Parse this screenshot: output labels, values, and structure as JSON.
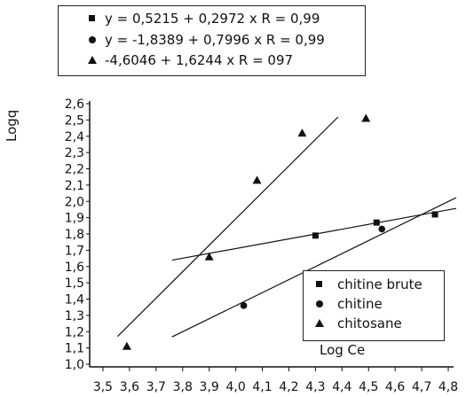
{
  "chart_data": {
    "type": "scatter",
    "xlabel": "Log Ce",
    "ylabel": "Logq",
    "xlim": [
      3.5,
      4.8
    ],
    "ylim": [
      1.0,
      2.6
    ],
    "x_ticks": [
      "3,5",
      "3,6",
      "3,7",
      "3,8",
      "3,9",
      "4,0",
      "4,1",
      "4,2",
      "4,3",
      "4,4",
      "4,5",
      "4,6",
      "4,7",
      "4,8"
    ],
    "y_ticks": [
      "1,0",
      "1,1",
      "1,2",
      "1,3",
      "1,4",
      "1,5",
      "1,6",
      "1,7",
      "1,8",
      "1,9",
      "2,0",
      "2,1",
      "2,2",
      "2,3",
      "2,4",
      "2,5",
      "2,6"
    ],
    "grid": false,
    "legend_position": "bottom-right",
    "equations": [
      {
        "marker": "square",
        "text": "y = 0,5215 + 0,2972 x R = 0,99"
      },
      {
        "marker": "circle",
        "text": "y = -1,8389 + 0,7996 x R = 0,99"
      },
      {
        "marker": "triangle",
        "text": "-4,6046 + 1,6244 x R = 097"
      }
    ],
    "series": [
      {
        "name": "chitine brute",
        "marker": "square",
        "x": [
          4.3,
          4.53,
          4.75
        ],
        "y": [
          1.79,
          1.87,
          1.92
        ],
        "fit": {
          "intercept": 0.5215,
          "slope": 0.2972,
          "x_range": [
            3.76,
            4.83
          ]
        }
      },
      {
        "name": "chitine",
        "marker": "circle",
        "x": [
          4.03,
          4.55
        ],
        "y": [
          1.36,
          1.83
        ],
        "fit": {
          "intercept": -1.8389,
          "slope": 0.7996,
          "x_range": [
            3.76,
            4.83
          ]
        }
      },
      {
        "name": "chitosane",
        "marker": "triangle",
        "x": [
          3.59,
          3.9,
          4.08,
          4.25,
          4.49
        ],
        "y": [
          1.11,
          1.66,
          2.13,
          2.42,
          2.51
        ],
        "fit": {
          "intercept": -4.6046,
          "slope": 1.6244,
          "x_range": [
            3.555,
            4.385
          ]
        }
      }
    ]
  }
}
